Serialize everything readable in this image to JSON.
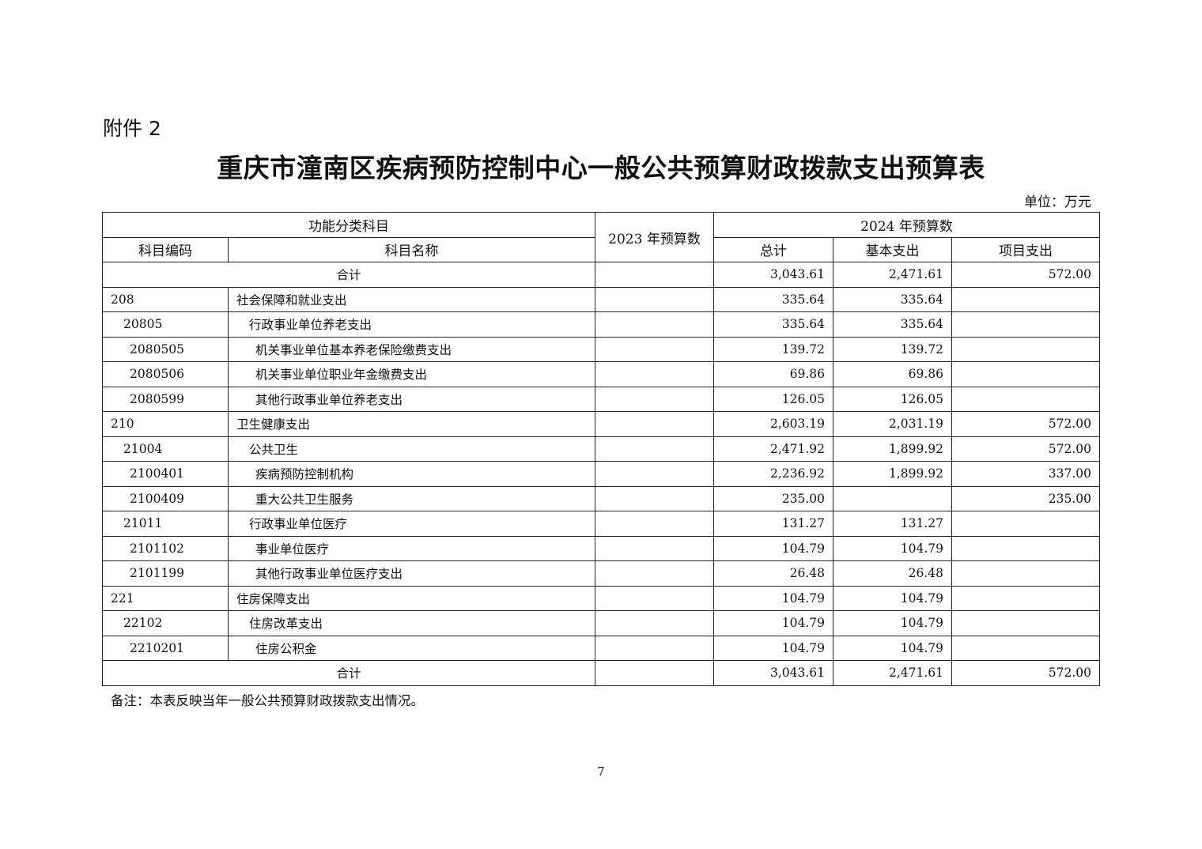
{
  "attachment_label": "附件 2",
  "title": "重庆市潼南区疾病预防控制中心一般公共预算财政拨款支出预算表",
  "unit": "单位：万元",
  "headers": {
    "group_function": "功能分类科目",
    "col_2023": "2023 年预算数",
    "group_2024": "2024 年预算数",
    "code": "科目编码",
    "name": "科目名称",
    "total": "总计",
    "basic": "基本支出",
    "project": "项目支出"
  },
  "total_row": {
    "label": "合计",
    "b2023": "",
    "total": "3,043.61",
    "basic": "2,471.61",
    "project": "572.00"
  },
  "rows": [
    {
      "level": 1,
      "code": "208",
      "name": "社会保障和就业支出",
      "b2023": "",
      "total": "335.64",
      "basic": "335.64",
      "project": ""
    },
    {
      "level": 2,
      "code": "20805",
      "name": "行政事业单位养老支出",
      "b2023": "",
      "total": "335.64",
      "basic": "335.64",
      "project": ""
    },
    {
      "level": 3,
      "code": "2080505",
      "name": "机关事业单位基本养老保险缴费支出",
      "b2023": "",
      "total": "139.72",
      "basic": "139.72",
      "project": ""
    },
    {
      "level": 3,
      "code": "2080506",
      "name": "机关事业单位职业年金缴费支出",
      "b2023": "",
      "total": "69.86",
      "basic": "69.86",
      "project": ""
    },
    {
      "level": 3,
      "code": "2080599",
      "name": "其他行政事业单位养老支出",
      "b2023": "",
      "total": "126.05",
      "basic": "126.05",
      "project": ""
    },
    {
      "level": 1,
      "code": "210",
      "name": "卫生健康支出",
      "b2023": "",
      "total": "2,603.19",
      "basic": "2,031.19",
      "project": "572.00"
    },
    {
      "level": 2,
      "code": "21004",
      "name": "公共卫生",
      "b2023": "",
      "total": "2,471.92",
      "basic": "1,899.92",
      "project": "572.00"
    },
    {
      "level": 3,
      "code": "2100401",
      "name": "疾病预防控制机构",
      "b2023": "",
      "total": "2,236.92",
      "basic": "1,899.92",
      "project": "337.00"
    },
    {
      "level": 3,
      "code": "2100409",
      "name": "重大公共卫生服务",
      "b2023": "",
      "total": "235.00",
      "basic": "",
      "project": "235.00"
    },
    {
      "level": 2,
      "code": "21011",
      "name": "行政事业单位医疗",
      "b2023": "",
      "total": "131.27",
      "basic": "131.27",
      "project": ""
    },
    {
      "level": 3,
      "code": "2101102",
      "name": "事业单位医疗",
      "b2023": "",
      "total": "104.79",
      "basic": "104.79",
      "project": ""
    },
    {
      "level": 3,
      "code": "2101199",
      "name": "其他行政事业单位医疗支出",
      "b2023": "",
      "total": "26.48",
      "basic": "26.48",
      "project": ""
    },
    {
      "level": 1,
      "code": "221",
      "name": "住房保障支出",
      "b2023": "",
      "total": "104.79",
      "basic": "104.79",
      "project": ""
    },
    {
      "level": 2,
      "code": "22102",
      "name": "住房改革支出",
      "b2023": "",
      "total": "104.79",
      "basic": "104.79",
      "project": ""
    },
    {
      "level": 3,
      "code": "2210201",
      "name": "住房公积金",
      "b2023": "",
      "total": "104.79",
      "basic": "104.79",
      "project": ""
    }
  ],
  "note": "备注：本表反映当年一般公共预算财政拨款支出情况。",
  "page_number": "7"
}
